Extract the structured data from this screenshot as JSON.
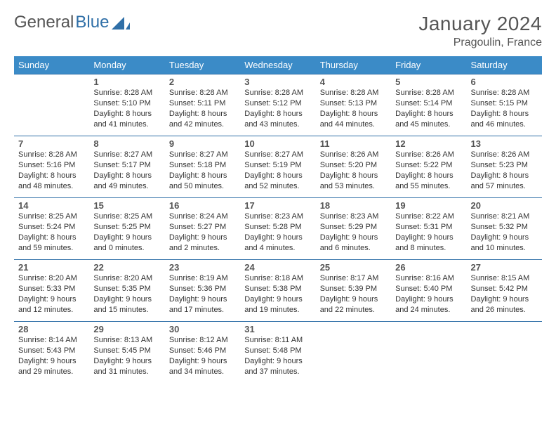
{
  "brand": {
    "part1": "General",
    "part2": "Blue"
  },
  "title": "January 2024",
  "location": "Pragoulin, France",
  "colors": {
    "header_bg": "#3b8bc7",
    "header_text": "#ffffff",
    "border": "#2f6fa7",
    "text": "#333333",
    "muted": "#555555",
    "logo_blue": "#2f6fa7"
  },
  "weekdays": [
    "Sunday",
    "Monday",
    "Tuesday",
    "Wednesday",
    "Thursday",
    "Friday",
    "Saturday"
  ],
  "weeks": [
    [
      null,
      {
        "n": "1",
        "sr": "Sunrise: 8:28 AM",
        "ss": "Sunset: 5:10 PM",
        "d1": "Daylight: 8 hours",
        "d2": "and 41 minutes."
      },
      {
        "n": "2",
        "sr": "Sunrise: 8:28 AM",
        "ss": "Sunset: 5:11 PM",
        "d1": "Daylight: 8 hours",
        "d2": "and 42 minutes."
      },
      {
        "n": "3",
        "sr": "Sunrise: 8:28 AM",
        "ss": "Sunset: 5:12 PM",
        "d1": "Daylight: 8 hours",
        "d2": "and 43 minutes."
      },
      {
        "n": "4",
        "sr": "Sunrise: 8:28 AM",
        "ss": "Sunset: 5:13 PM",
        "d1": "Daylight: 8 hours",
        "d2": "and 44 minutes."
      },
      {
        "n": "5",
        "sr": "Sunrise: 8:28 AM",
        "ss": "Sunset: 5:14 PM",
        "d1": "Daylight: 8 hours",
        "d2": "and 45 minutes."
      },
      {
        "n": "6",
        "sr": "Sunrise: 8:28 AM",
        "ss": "Sunset: 5:15 PM",
        "d1": "Daylight: 8 hours",
        "d2": "and 46 minutes."
      }
    ],
    [
      {
        "n": "7",
        "sr": "Sunrise: 8:28 AM",
        "ss": "Sunset: 5:16 PM",
        "d1": "Daylight: 8 hours",
        "d2": "and 48 minutes."
      },
      {
        "n": "8",
        "sr": "Sunrise: 8:27 AM",
        "ss": "Sunset: 5:17 PM",
        "d1": "Daylight: 8 hours",
        "d2": "and 49 minutes."
      },
      {
        "n": "9",
        "sr": "Sunrise: 8:27 AM",
        "ss": "Sunset: 5:18 PM",
        "d1": "Daylight: 8 hours",
        "d2": "and 50 minutes."
      },
      {
        "n": "10",
        "sr": "Sunrise: 8:27 AM",
        "ss": "Sunset: 5:19 PM",
        "d1": "Daylight: 8 hours",
        "d2": "and 52 minutes."
      },
      {
        "n": "11",
        "sr": "Sunrise: 8:26 AM",
        "ss": "Sunset: 5:20 PM",
        "d1": "Daylight: 8 hours",
        "d2": "and 53 minutes."
      },
      {
        "n": "12",
        "sr": "Sunrise: 8:26 AM",
        "ss": "Sunset: 5:22 PM",
        "d1": "Daylight: 8 hours",
        "d2": "and 55 minutes."
      },
      {
        "n": "13",
        "sr": "Sunrise: 8:26 AM",
        "ss": "Sunset: 5:23 PM",
        "d1": "Daylight: 8 hours",
        "d2": "and 57 minutes."
      }
    ],
    [
      {
        "n": "14",
        "sr": "Sunrise: 8:25 AM",
        "ss": "Sunset: 5:24 PM",
        "d1": "Daylight: 8 hours",
        "d2": "and 59 minutes."
      },
      {
        "n": "15",
        "sr": "Sunrise: 8:25 AM",
        "ss": "Sunset: 5:25 PM",
        "d1": "Daylight: 9 hours",
        "d2": "and 0 minutes."
      },
      {
        "n": "16",
        "sr": "Sunrise: 8:24 AM",
        "ss": "Sunset: 5:27 PM",
        "d1": "Daylight: 9 hours",
        "d2": "and 2 minutes."
      },
      {
        "n": "17",
        "sr": "Sunrise: 8:23 AM",
        "ss": "Sunset: 5:28 PM",
        "d1": "Daylight: 9 hours",
        "d2": "and 4 minutes."
      },
      {
        "n": "18",
        "sr": "Sunrise: 8:23 AM",
        "ss": "Sunset: 5:29 PM",
        "d1": "Daylight: 9 hours",
        "d2": "and 6 minutes."
      },
      {
        "n": "19",
        "sr": "Sunrise: 8:22 AM",
        "ss": "Sunset: 5:31 PM",
        "d1": "Daylight: 9 hours",
        "d2": "and 8 minutes."
      },
      {
        "n": "20",
        "sr": "Sunrise: 8:21 AM",
        "ss": "Sunset: 5:32 PM",
        "d1": "Daylight: 9 hours",
        "d2": "and 10 minutes."
      }
    ],
    [
      {
        "n": "21",
        "sr": "Sunrise: 8:20 AM",
        "ss": "Sunset: 5:33 PM",
        "d1": "Daylight: 9 hours",
        "d2": "and 12 minutes."
      },
      {
        "n": "22",
        "sr": "Sunrise: 8:20 AM",
        "ss": "Sunset: 5:35 PM",
        "d1": "Daylight: 9 hours",
        "d2": "and 15 minutes."
      },
      {
        "n": "23",
        "sr": "Sunrise: 8:19 AM",
        "ss": "Sunset: 5:36 PM",
        "d1": "Daylight: 9 hours",
        "d2": "and 17 minutes."
      },
      {
        "n": "24",
        "sr": "Sunrise: 8:18 AM",
        "ss": "Sunset: 5:38 PM",
        "d1": "Daylight: 9 hours",
        "d2": "and 19 minutes."
      },
      {
        "n": "25",
        "sr": "Sunrise: 8:17 AM",
        "ss": "Sunset: 5:39 PM",
        "d1": "Daylight: 9 hours",
        "d2": "and 22 minutes."
      },
      {
        "n": "26",
        "sr": "Sunrise: 8:16 AM",
        "ss": "Sunset: 5:40 PM",
        "d1": "Daylight: 9 hours",
        "d2": "and 24 minutes."
      },
      {
        "n": "27",
        "sr": "Sunrise: 8:15 AM",
        "ss": "Sunset: 5:42 PM",
        "d1": "Daylight: 9 hours",
        "d2": "and 26 minutes."
      }
    ],
    [
      {
        "n": "28",
        "sr": "Sunrise: 8:14 AM",
        "ss": "Sunset: 5:43 PM",
        "d1": "Daylight: 9 hours",
        "d2": "and 29 minutes."
      },
      {
        "n": "29",
        "sr": "Sunrise: 8:13 AM",
        "ss": "Sunset: 5:45 PM",
        "d1": "Daylight: 9 hours",
        "d2": "and 31 minutes."
      },
      {
        "n": "30",
        "sr": "Sunrise: 8:12 AM",
        "ss": "Sunset: 5:46 PM",
        "d1": "Daylight: 9 hours",
        "d2": "and 34 minutes."
      },
      {
        "n": "31",
        "sr": "Sunrise: 8:11 AM",
        "ss": "Sunset: 5:48 PM",
        "d1": "Daylight: 9 hours",
        "d2": "and 37 minutes."
      },
      null,
      null,
      null
    ]
  ]
}
